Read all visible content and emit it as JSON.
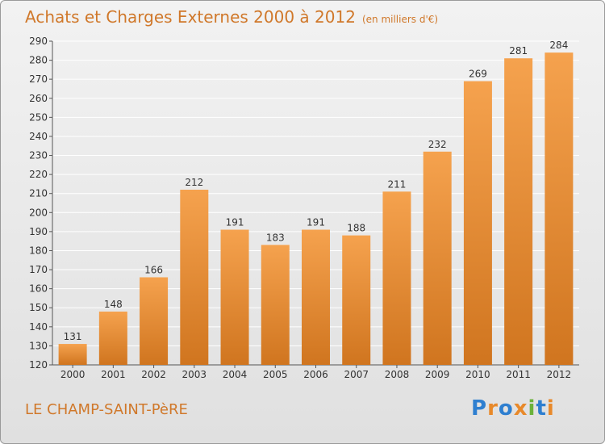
{
  "title": "Achats et Charges Externes 2000 à 2012",
  "subtitle": "(en milliers d'€)",
  "commune": "LE CHAMP-SAINT-PèRE",
  "logo": {
    "text": "Proxiti",
    "letters": [
      {
        "ch": "P",
        "color": "#2e7fd0"
      },
      {
        "ch": "r",
        "color": "#e8892a"
      },
      {
        "ch": "o",
        "color": "#2e7fd0"
      },
      {
        "ch": "x",
        "color": "#e8892a"
      },
      {
        "ch": "i",
        "color": "#6bb23a"
      },
      {
        "ch": "t",
        "color": "#2e7fd0"
      },
      {
        "ch": "i",
        "color": "#e8892a"
      }
    ]
  },
  "colors": {
    "bar_top": "#f5a24e",
    "bar_bottom": "#d0751f",
    "title": "#d0782a",
    "grid": "#ffffff",
    "axis_text": "#333333"
  },
  "chart_data": {
    "type": "bar",
    "categories": [
      "2000",
      "2001",
      "2002",
      "2003",
      "2004",
      "2005",
      "2006",
      "2007",
      "2008",
      "2009",
      "2010",
      "2011",
      "2012"
    ],
    "values": [
      131,
      148,
      166,
      212,
      191,
      183,
      191,
      188,
      211,
      232,
      269,
      281,
      284
    ],
    "ylim": [
      120,
      290
    ],
    "yticks": [
      120,
      130,
      140,
      150,
      160,
      170,
      180,
      190,
      200,
      210,
      220,
      230,
      240,
      250,
      260,
      270,
      280,
      290
    ],
    "grid": true
  }
}
